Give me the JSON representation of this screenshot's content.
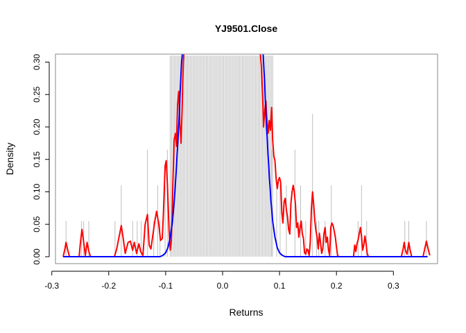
{
  "chart_data": {
    "type": "line",
    "title": "YJ9501.Close",
    "xlabel": "Returns",
    "ylabel": "Density",
    "xlim": [
      -0.28,
      0.36
    ],
    "ylim": [
      0,
      0.31
    ],
    "grid": false,
    "legend": "none",
    "x_ticks": [
      -0.3,
      -0.2,
      -0.1,
      0.0,
      0.1,
      0.2,
      0.3
    ],
    "x_tick_labels": [
      "-0.3",
      "-0.2",
      "-0.1",
      "0.0",
      "0.1",
      "0.2",
      "0.3"
    ],
    "y_ticks": [
      0.0,
      0.05,
      0.1,
      0.15,
      0.2,
      0.25,
      0.3
    ],
    "y_tick_labels": [
      "0.00",
      "0.05",
      "0.10",
      "0.15",
      "0.20",
      "0.25",
      "0.30"
    ],
    "rug": {
      "color": "#bdbdbd",
      "outer": [
        {
          "x": -0.275,
          "h": 0.055
        },
        {
          "x": -0.248,
          "h": 0.055
        },
        {
          "x": -0.244,
          "h": 0.055
        },
        {
          "x": -0.235,
          "h": 0.055
        },
        {
          "x": -0.189,
          "h": 0.055
        },
        {
          "x": -0.178,
          "h": 0.11
        },
        {
          "x": -0.158,
          "h": 0.055
        },
        {
          "x": -0.15,
          "h": 0.055
        },
        {
          "x": -0.143,
          "h": 0.055
        },
        {
          "x": -0.132,
          "h": 0.165
        },
        {
          "x": -0.121,
          "h": 0.055
        },
        {
          "x": -0.114,
          "h": 0.11
        },
        {
          "x": -0.11,
          "h": 0.055
        },
        {
          "x": -0.101,
          "h": 0.11
        },
        {
          "x": -0.097,
          "h": 0.165
        },
        {
          "x": 0.086,
          "h": 0.165
        },
        {
          "x": 0.095,
          "h": 0.11
        },
        {
          "x": 0.101,
          "h": 0.11
        },
        {
          "x": 0.112,
          "h": 0.11
        },
        {
          "x": 0.127,
          "h": 0.165
        },
        {
          "x": 0.137,
          "h": 0.11
        },
        {
          "x": 0.146,
          "h": 0.055
        },
        {
          "x": 0.158,
          "h": 0.22
        },
        {
          "x": 0.165,
          "h": 0.055
        },
        {
          "x": 0.169,
          "h": 0.055
        },
        {
          "x": 0.18,
          "h": 0.055
        },
        {
          "x": 0.191,
          "h": 0.11
        },
        {
          "x": 0.238,
          "h": 0.055
        },
        {
          "x": 0.244,
          "h": 0.11
        },
        {
          "x": 0.253,
          "h": 0.055
        },
        {
          "x": 0.32,
          "h": 0.055
        },
        {
          "x": 0.327,
          "h": 0.055
        },
        {
          "x": 0.358,
          "h": 0.055
        }
      ],
      "inner_range": [
        -0.092,
        0.088
      ],
      "inner_count": 72,
      "inner_height": 0.31
    },
    "series": [
      {
        "color": "#ff0000",
        "points": [
          [
            -0.28,
            0.0
          ],
          [
            -0.277,
            0.012
          ],
          [
            -0.275,
            0.022
          ],
          [
            -0.272,
            0.01
          ],
          [
            -0.269,
            0.0
          ],
          [
            -0.252,
            0.0
          ],
          [
            -0.25,
            0.02
          ],
          [
            -0.247,
            0.042
          ],
          [
            -0.244,
            0.022
          ],
          [
            -0.241,
            0.002
          ],
          [
            -0.238,
            0.022
          ],
          [
            -0.235,
            0.008
          ],
          [
            -0.232,
            0.0
          ],
          [
            -0.19,
            0.0
          ],
          [
            -0.186,
            0.012
          ],
          [
            -0.182,
            0.03
          ],
          [
            -0.178,
            0.048
          ],
          [
            -0.174,
            0.025
          ],
          [
            -0.171,
            0.005
          ],
          [
            -0.166,
            0.022
          ],
          [
            -0.162,
            0.024
          ],
          [
            -0.158,
            0.01
          ],
          [
            -0.155,
            0.022
          ],
          [
            -0.151,
            0.005
          ],
          [
            -0.147,
            0.02
          ],
          [
            -0.144,
            0.008
          ],
          [
            -0.14,
            0.002
          ],
          [
            -0.136,
            0.05
          ],
          [
            -0.132,
            0.065
          ],
          [
            -0.129,
            0.018
          ],
          [
            -0.126,
            0.012
          ],
          [
            -0.123,
            0.03
          ],
          [
            -0.119,
            0.055
          ],
          [
            -0.116,
            0.07
          ],
          [
            -0.112,
            0.05
          ],
          [
            -0.109,
            0.025
          ],
          [
            -0.106,
            0.028
          ],
          [
            -0.104,
            0.065
          ],
          [
            -0.101,
            0.14
          ],
          [
            -0.099,
            0.148
          ],
          [
            -0.097,
            0.112
          ],
          [
            -0.094,
            0.04
          ],
          [
            -0.092,
            0.01
          ],
          [
            -0.09,
            0.025
          ],
          [
            -0.087,
            0.125
          ],
          [
            -0.085,
            0.18
          ],
          [
            -0.083,
            0.19
          ],
          [
            -0.081,
            0.17
          ],
          [
            -0.079,
            0.235
          ],
          [
            -0.077,
            0.255
          ],
          [
            -0.075,
            0.205
          ],
          [
            -0.073,
            0.175
          ],
          [
            -0.071,
            0.232
          ],
          [
            -0.069,
            0.3
          ],
          [
            -0.068,
            0.315
          ],
          [
            0.066,
            0.315
          ],
          [
            0.068,
            0.295
          ],
          [
            0.07,
            0.255
          ],
          [
            0.072,
            0.2
          ],
          [
            0.074,
            0.225
          ],
          [
            0.076,
            0.24
          ],
          [
            0.078,
            0.21
          ],
          [
            0.08,
            0.19
          ],
          [
            0.082,
            0.21
          ],
          [
            0.084,
            0.195
          ],
          [
            0.086,
            0.23
          ],
          [
            0.088,
            0.18
          ],
          [
            0.09,
            0.155
          ],
          [
            0.092,
            0.148
          ],
          [
            0.094,
            0.12
          ],
          [
            0.096,
            0.105
          ],
          [
            0.098,
            0.118
          ],
          [
            0.1,
            0.122
          ],
          [
            0.102,
            0.115
          ],
          [
            0.104,
            0.068
          ],
          [
            0.106,
            0.052
          ],
          [
            0.108,
            0.085
          ],
          [
            0.11,
            0.09
          ],
          [
            0.112,
            0.072
          ],
          [
            0.114,
            0.062
          ],
          [
            0.116,
            0.042
          ],
          [
            0.118,
            0.035
          ],
          [
            0.12,
            0.082
          ],
          [
            0.122,
            0.1
          ],
          [
            0.124,
            0.11
          ],
          [
            0.126,
            0.1
          ],
          [
            0.128,
            0.08
          ],
          [
            0.13,
            0.045
          ],
          [
            0.132,
            0.052
          ],
          [
            0.134,
            0.03
          ],
          [
            0.136,
            0.045
          ],
          [
            0.138,
            0.055
          ],
          [
            0.14,
            0.036
          ],
          [
            0.142,
            0.028
          ],
          [
            0.144,
            0.006
          ],
          [
            0.146,
            0.004
          ],
          [
            0.148,
            0.012
          ],
          [
            0.15,
            0.01
          ],
          [
            0.152,
            0.002
          ],
          [
            0.154,
            0.022
          ],
          [
            0.156,
            0.075
          ],
          [
            0.158,
            0.1
          ],
          [
            0.16,
            0.08
          ],
          [
            0.162,
            0.055
          ],
          [
            0.164,
            0.04
          ],
          [
            0.166,
            0.03
          ],
          [
            0.168,
            0.012
          ],
          [
            0.17,
            0.036
          ],
          [
            0.172,
            0.022
          ],
          [
            0.174,
            0.005
          ],
          [
            0.176,
            0.012
          ],
          [
            0.178,
            0.035
          ],
          [
            0.18,
            0.045
          ],
          [
            0.182,
            0.022
          ],
          [
            0.184,
            0.03
          ],
          [
            0.186,
            0.01
          ],
          [
            0.188,
            0.002
          ],
          [
            0.19,
            0.045
          ],
          [
            0.192,
            0.052
          ],
          [
            0.194,
            0.048
          ],
          [
            0.196,
            0.04
          ],
          [
            0.198,
            0.03
          ],
          [
            0.2,
            0.015
          ],
          [
            0.202,
            0.002
          ],
          [
            0.204,
            0.0
          ],
          [
            0.23,
            0.0
          ],
          [
            0.232,
            0.018
          ],
          [
            0.234,
            0.008
          ],
          [
            0.236,
            0.02
          ],
          [
            0.238,
            0.026
          ],
          [
            0.24,
            0.035
          ],
          [
            0.242,
            0.045
          ],
          [
            0.244,
            0.032
          ],
          [
            0.246,
            0.01
          ],
          [
            0.248,
            0.018
          ],
          [
            0.25,
            0.032
          ],
          [
            0.252,
            0.02
          ],
          [
            0.254,
            0.005
          ],
          [
            0.256,
            0.0
          ],
          [
            0.314,
            0.0
          ],
          [
            0.317,
            0.012
          ],
          [
            0.319,
            0.022
          ],
          [
            0.321,
            0.01
          ],
          [
            0.324,
            0.004
          ],
          [
            0.327,
            0.022
          ],
          [
            0.329,
            0.012
          ],
          [
            0.332,
            0.0
          ],
          [
            0.352,
            0.0
          ],
          [
            0.355,
            0.012
          ],
          [
            0.358,
            0.024
          ],
          [
            0.361,
            0.012
          ],
          [
            0.364,
            0.002
          ]
        ]
      },
      {
        "color": "#0000ff",
        "points": [
          [
            -0.28,
            0.0
          ],
          [
            -0.11,
            0.0
          ],
          [
            -0.105,
            0.002
          ],
          [
            -0.1,
            0.006
          ],
          [
            -0.096,
            0.014
          ],
          [
            -0.092,
            0.03
          ],
          [
            -0.088,
            0.055
          ],
          [
            -0.085,
            0.085
          ],
          [
            -0.082,
            0.125
          ],
          [
            -0.079,
            0.17
          ],
          [
            -0.076,
            0.22
          ],
          [
            -0.074,
            0.265
          ],
          [
            -0.072,
            0.3
          ],
          [
            -0.0705,
            0.315
          ],
          [
            0.071,
            0.315
          ],
          [
            0.072,
            0.3
          ],
          [
            0.074,
            0.265
          ],
          [
            0.076,
            0.22
          ],
          [
            0.079,
            0.17
          ],
          [
            0.082,
            0.125
          ],
          [
            0.085,
            0.085
          ],
          [
            0.088,
            0.055
          ],
          [
            0.092,
            0.03
          ],
          [
            0.096,
            0.014
          ],
          [
            0.1,
            0.006
          ],
          [
            0.105,
            0.002
          ],
          [
            0.11,
            0.0
          ],
          [
            0.36,
            0.0
          ]
        ]
      }
    ]
  }
}
